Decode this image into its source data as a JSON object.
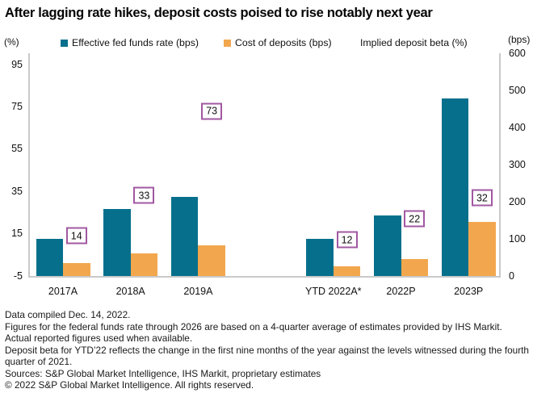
{
  "title": "After lagging rate hikes, deposit costs poised to rise notably next year",
  "axis_units": {
    "left": "(%)",
    "right": "(bps)"
  },
  "legend": {
    "items": [
      {
        "label": "Effective fed funds rate (bps)",
        "color": "#06708C",
        "has_swatch": true
      },
      {
        "label": "Cost of deposits (bps)",
        "color": "#F2A74E",
        "has_swatch": true
      },
      {
        "label": "Implied deposit beta (%)",
        "color": null,
        "has_swatch": false
      }
    ]
  },
  "chart_data": {
    "type": "bar",
    "categories": [
      "2017A",
      "2018A",
      "2019A",
      "YTD 2022A*",
      "2022P",
      "2023P"
    ],
    "series": [
      {
        "name": "Effective fed funds rate (bps)",
        "key": "fed-funds",
        "axis": "right",
        "color": "#06708C",
        "values": [
          100,
          180,
          212,
          100,
          162,
          479
        ]
      },
      {
        "name": "Cost of deposits (bps)",
        "key": "cost-of-deposits",
        "axis": "right",
        "color": "#F2A74E",
        "values": [
          35,
          60,
          82,
          26,
          45,
          145
        ]
      },
      {
        "name": "Implied deposit beta (%)",
        "key": "implied-deposit-beta",
        "axis": "left",
        "style": "boxed-label",
        "border_color": "#A158A1",
        "values": [
          14,
          33,
          73,
          12,
          22,
          32
        ]
      }
    ],
    "left_axis": {
      "unit": "%",
      "min": -5,
      "max": 95,
      "ticks": [
        95,
        75,
        55,
        35,
        15,
        -5
      ]
    },
    "right_axis": {
      "unit": "bps",
      "min": 0,
      "max": 600,
      "ticks": [
        600,
        500,
        400,
        300,
        200,
        100,
        0
      ]
    },
    "legend_position": "top",
    "grid": false
  },
  "footnotes": [
    "Data compiled Dec. 14, 2022.",
    "Figures for the federal funds rate through 2026 are based on a 4-quarter average of estimates provided by IHS Markit.",
    "Actual reported figures used when available.",
    "Deposit beta for YTD’22 reflects the change in the first nine months of the year against the levels witnessed during the fourth",
    "quarter of 2021.",
    "Sources: S&P Global Market Intelligence, IHS Markit, proprietary estimates",
    "© 2022 S&P Global Market Intelligence. All rights reserved."
  ],
  "colors": {
    "fed_funds": "#06708C",
    "deposits": "#F2A74E",
    "beta_box_border": "#A158A1",
    "axis_line": "#C9C9C9",
    "text": "#000000"
  }
}
